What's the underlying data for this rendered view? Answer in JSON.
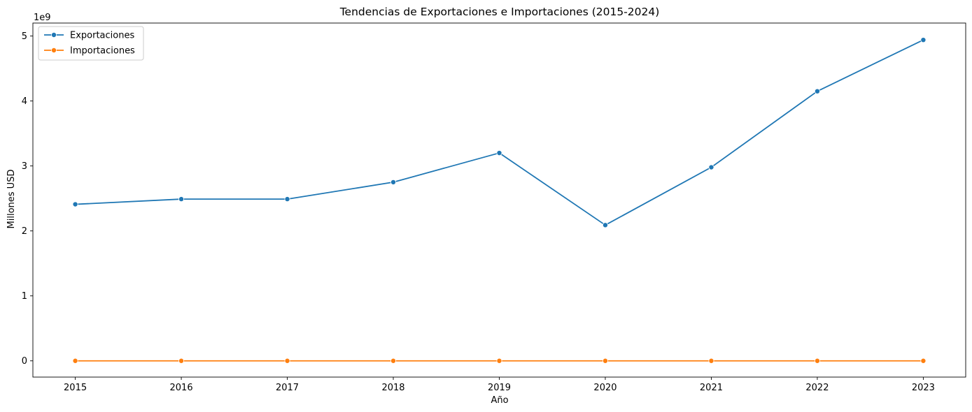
{
  "chart_data": {
    "type": "line",
    "title": "Tendencias de Exportaciones e Importaciones (2015-2024)",
    "xlabel": "Año",
    "ylabel": "Millones USD",
    "y_offset_label": "1e9",
    "x": [
      2015,
      2016,
      2017,
      2018,
      2019,
      2020,
      2021,
      2022,
      2023
    ],
    "x_tick_labels": [
      "2015",
      "2016",
      "2017",
      "2018",
      "2019",
      "2020",
      "2021",
      "2022",
      "2023"
    ],
    "y_ticks": [
      0,
      1,
      2,
      3,
      4,
      5
    ],
    "y_tick_labels": [
      "0",
      "1",
      "2",
      "3",
      "4",
      "5"
    ],
    "xlim": [
      2014.6,
      2023.4
    ],
    "ylim": [
      -250000000,
      5200000000
    ],
    "grid": false,
    "legend_position": "top-left",
    "series": [
      {
        "name": "Exportaciones",
        "color": "#1f77b4",
        "marker": "circle",
        "values": [
          2410000000,
          2490000000,
          2490000000,
          2750000000,
          3200000000,
          2090000000,
          2980000000,
          4150000000,
          4940000000
        ]
      },
      {
        "name": "Importaciones",
        "color": "#ff7f0e",
        "marker": "circle",
        "values": [
          0,
          0,
          0,
          0,
          0,
          0,
          0,
          0,
          0
        ]
      }
    ]
  }
}
